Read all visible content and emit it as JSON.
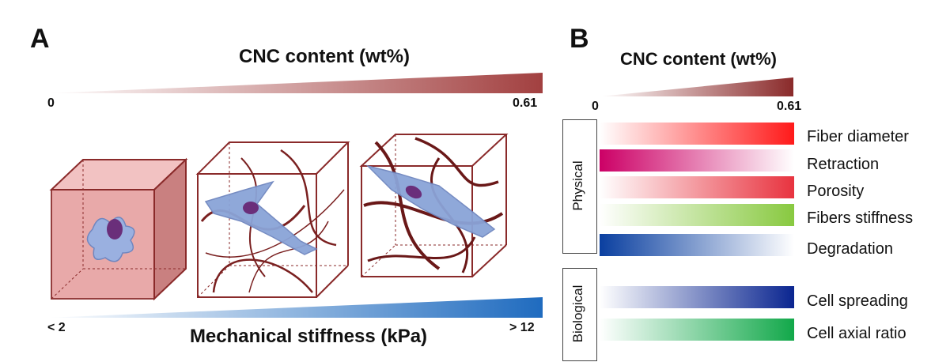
{
  "panel_a": {
    "letter": "A",
    "top_title": "CNC content (wt%)",
    "top_min": "0",
    "top_max": "0.61",
    "bottom_title": "Mechanical stiffness (kPa)",
    "bottom_min": "< 2",
    "bottom_max": "> 12"
  },
  "panel_b": {
    "letter": "B",
    "title": "CNC content (wt%)",
    "min": "0",
    "max": "0.61",
    "categories": [
      {
        "label": "Physical"
      },
      {
        "label": "Biological"
      }
    ],
    "rows": [
      {
        "label": "Fiber diameter",
        "color": "#ff1a1a",
        "direction": "increasing"
      },
      {
        "label": "Retraction",
        "color": "#cc0066",
        "direction": "decreasing"
      },
      {
        "label": "Porosity",
        "color": "#e8333f",
        "direction": "increasing"
      },
      {
        "label": "Fibers stiffness",
        "color": "#88c940",
        "direction": "increasing"
      },
      {
        "label": "Degradation",
        "color": "#0a3fa0",
        "direction": "decreasing"
      },
      {
        "label": "Cell spreading",
        "color": "#0a2590",
        "direction": "increasing"
      },
      {
        "label": "Cell axial ratio",
        "color": "#12a84a",
        "direction": "increasing"
      }
    ]
  },
  "colors": {
    "cnc_wedge": "#a24040",
    "stiffness_wedge": "#1f6bbf",
    "cube_edge": "#8a2a2a",
    "cube_fill": "#e8a4a4",
    "cell": "#8aa4d8",
    "nucleus": "#6a2e7a"
  }
}
